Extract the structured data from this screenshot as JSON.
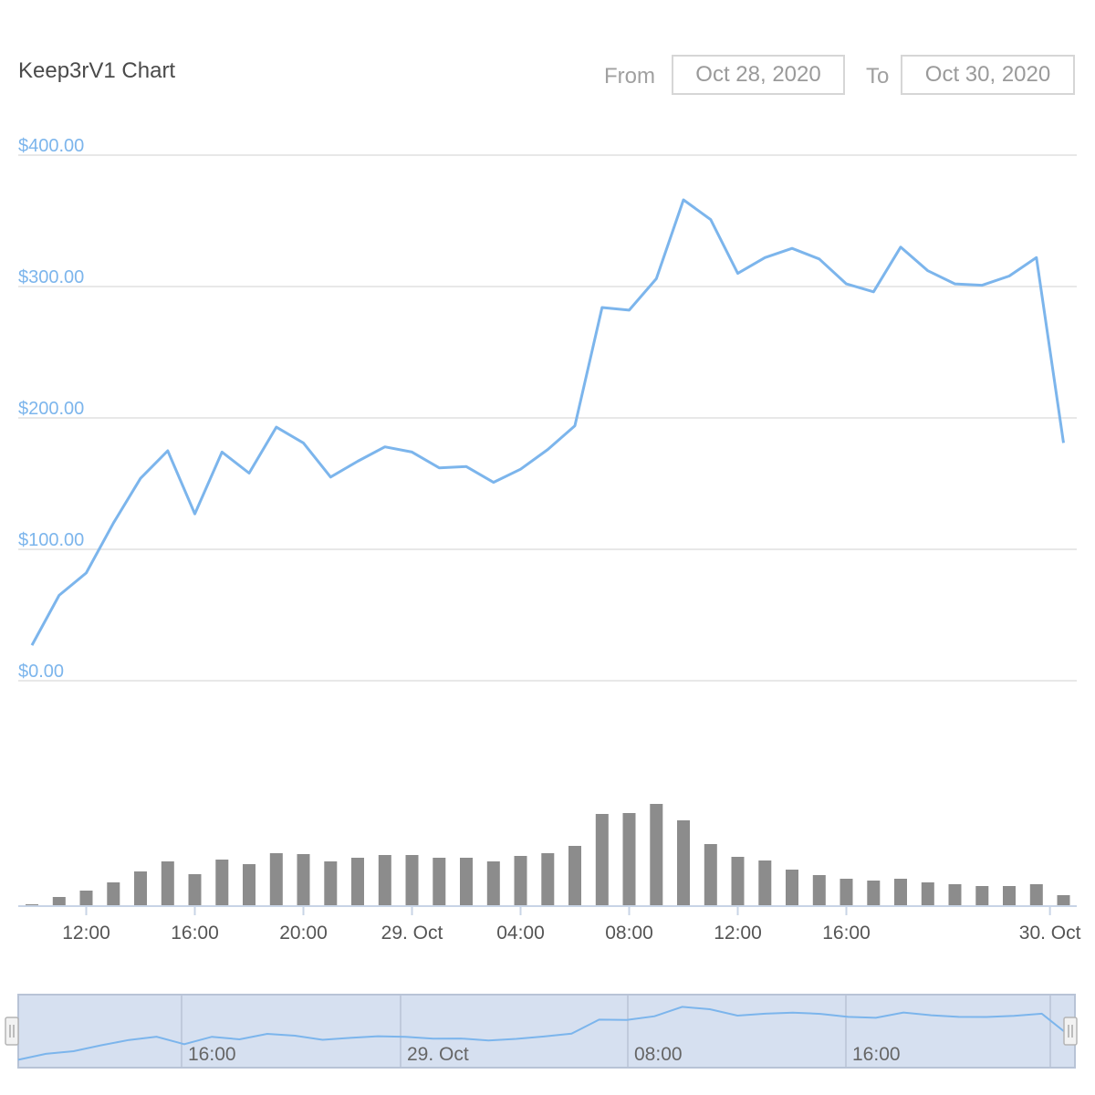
{
  "header": {
    "title": "Keep3rV1 Chart",
    "from_label": "From",
    "from_value": "Oct 28, 2020",
    "to_label": "To",
    "to_value": "Oct 30, 2020"
  },
  "colors": {
    "price_line": "#7cb5ec",
    "volume_bar": "#8c8c8c",
    "grid": "#e0e0e0",
    "navigator_fill": "#d6e0f0",
    "navigator_border": "#b8c3d6"
  },
  "chart_data": [
    {
      "type": "line",
      "title": "",
      "series": [
        {
          "values": [
            27,
            65,
            82,
            120,
            154,
            175,
            127,
            174,
            158,
            193,
            181,
            155,
            167,
            178,
            174,
            162,
            163,
            151,
            161,
            176,
            194,
            284,
            282,
            306,
            366,
            351,
            310,
            322,
            329,
            321,
            302,
            296,
            330,
            312,
            302,
            301,
            308,
            322,
            181
          ]
        }
      ],
      "x_start": "2020-10-28 09:00",
      "x_step_hours": 1,
      "y_ticks": [
        "$0.00",
        "$100.00",
        "$200.00",
        "$300.00",
        "$400.00"
      ],
      "ylim": [
        0,
        400
      ],
      "x_ticks": [
        "12:00",
        "16:00",
        "20:00",
        "29. Oct",
        "04:00",
        "08:00",
        "12:00",
        "16:00",
        "30. Oct"
      ],
      "grid": true
    },
    {
      "type": "bar",
      "series": [
        {
          "values": [
            2,
            10,
            17,
            26,
            38,
            49,
            35,
            51,
            46,
            58,
            57,
            49,
            53,
            56,
            56,
            53,
            53,
            49,
            55,
            58,
            66,
            101,
            102,
            112,
            94,
            68,
            54,
            50,
            40,
            34,
            30,
            28,
            30,
            26,
            24,
            22,
            22,
            24,
            12
          ]
        }
      ]
    }
  ],
  "navigator": {
    "labels": [
      "16:00",
      "29. Oct",
      "08:00",
      "16:00"
    ]
  }
}
